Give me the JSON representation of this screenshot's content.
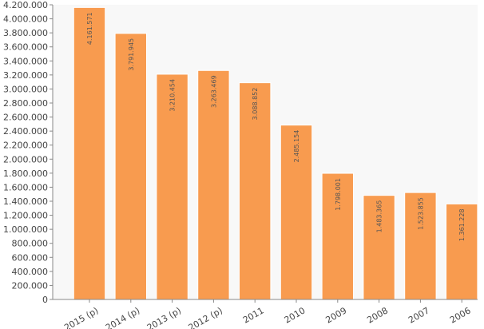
{
  "chart_data": {
    "type": "bar",
    "title": "",
    "xlabel": "",
    "ylabel": "",
    "categories": [
      "2015 (p)",
      "2014 (p)",
      "2013 (p)",
      "2012 (p)",
      "2011",
      "2010",
      "2009",
      "2008",
      "2007",
      "2006"
    ],
    "values": [
      4161571,
      3791945,
      3210454,
      3263469,
      3088852,
      2485154,
      1798001,
      1483365,
      1523855,
      1361228
    ],
    "value_labels": [
      "4.161.571",
      "3.791.945",
      "3.210.454",
      "3.263.469",
      "3.088.852",
      "2.485.154",
      "1.798.001",
      "1.483.365",
      "1.523.855",
      "1.361.228"
    ],
    "ylim": [
      0,
      4200000
    ],
    "yticks": [
      0,
      200000,
      400000,
      600000,
      800000,
      1000000,
      1200000,
      1400000,
      1600000,
      1800000,
      2000000,
      2200000,
      2400000,
      2600000,
      2800000,
      3000000,
      3200000,
      3400000,
      3600000,
      3800000,
      4000000,
      4200000
    ],
    "ytick_labels": [
      "0",
      "200.000",
      "400.000",
      "600.000",
      "800.000",
      "1.000.000",
      "1.200.000",
      "1.400.000",
      "1.600.000",
      "1.800.000",
      "2.000.000",
      "2.200.000",
      "2.400.000",
      "2.600.000",
      "2.800.000",
      "3.000.000",
      "3.200.000",
      "3.400.000",
      "3.600.000",
      "3.800.000",
      "4.000.000",
      "4.200.000"
    ],
    "grid": false,
    "legend": "none",
    "bar_color": "#f89b4f",
    "bar_edge_color": "#ffffff",
    "plot_background": "#f8f8f8"
  }
}
